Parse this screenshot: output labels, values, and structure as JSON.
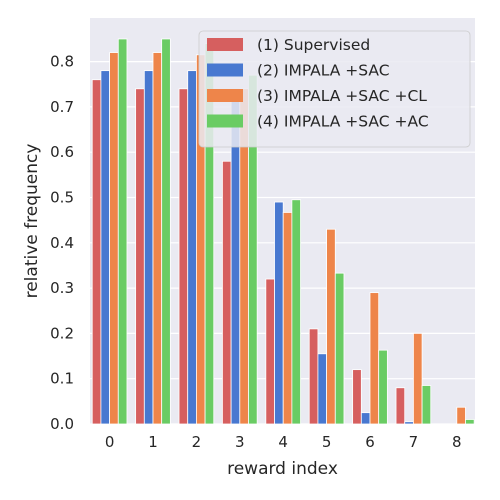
{
  "chart_data": {
    "type": "bar",
    "xlabel": "reward index",
    "ylabel": "relative frequency",
    "categories": [
      "0",
      "1",
      "2",
      "3",
      "4",
      "5",
      "6",
      "7",
      "8"
    ],
    "ylim": [
      0,
      0.88
    ],
    "yticks": [
      "0.0",
      "0.1",
      "0.2",
      "0.3",
      "0.4",
      "0.5",
      "0.6",
      "0.7",
      "0.8"
    ],
    "grid": true,
    "legend_position": "top-right",
    "series": [
      {
        "name": "(1) Supervised",
        "color": "#d65f5f",
        "values": [
          0.76,
          0.74,
          0.74,
          0.58,
          0.32,
          0.21,
          0.12,
          0.08,
          0.0
        ]
      },
      {
        "name": "(2) IMPALA +SAC",
        "color": "#4878d0",
        "values": [
          0.78,
          0.78,
          0.78,
          0.73,
          0.49,
          0.155,
          0.025,
          0.005,
          0.0
        ]
      },
      {
        "name": "(3) IMPALA +SAC +CL",
        "color": "#ee854a",
        "values": [
          0.82,
          0.82,
          0.815,
          0.74,
          0.467,
          0.43,
          0.29,
          0.2,
          0.037
        ]
      },
      {
        "name": "(4) IMPALA +SAC +AC",
        "color": "#6acc64",
        "values": [
          0.85,
          0.85,
          0.84,
          0.77,
          0.495,
          0.333,
          0.163,
          0.085,
          0.01
        ]
      }
    ]
  }
}
